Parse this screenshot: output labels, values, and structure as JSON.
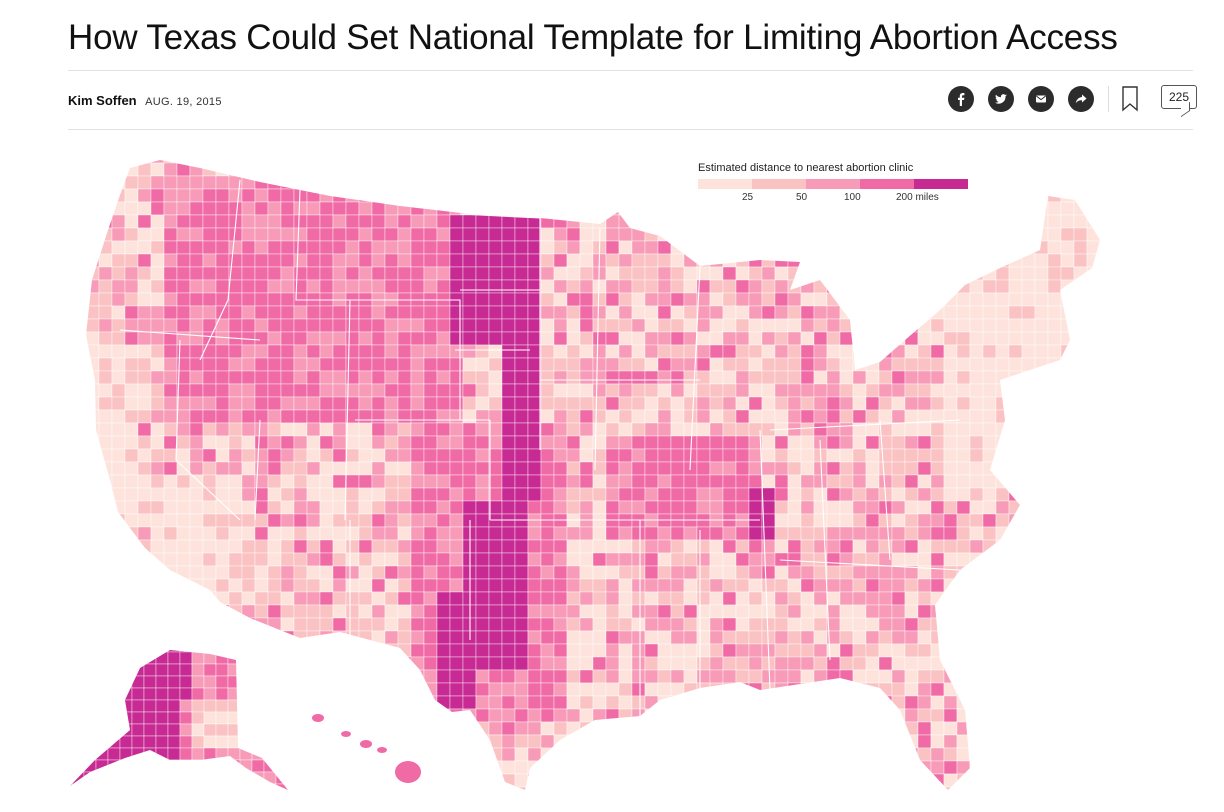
{
  "article": {
    "headline": "How Texas Could Set National Template for Limiting Abortion Access",
    "author": "Kim Soffen",
    "date": "AUG. 19, 2015",
    "comment_count": "225"
  },
  "toolbar": {
    "icons": [
      "facebook-icon",
      "twitter-icon",
      "email-icon",
      "share-icon",
      "bookmark-icon",
      "comment-icon"
    ]
  },
  "legend": {
    "title": "Estimated distance to nearest abortion clinic",
    "ticks": [
      "25",
      "50",
      "100",
      "200 miles"
    ],
    "colors": [
      "#fde3dc",
      "#fbc2c3",
      "#f79bb8",
      "#f06aa6",
      "#c72a93"
    ]
  },
  "map": {
    "subject": "Estimated distance to nearest abortion clinic by county, United States",
    "colors": {
      "under_25": "#fde3dc",
      "25_50": "#fbc2c3",
      "50_100": "#f79bb8",
      "100_200": "#f06aa6",
      "over_200": "#c72a93",
      "borders": "#ffffff"
    }
  }
}
